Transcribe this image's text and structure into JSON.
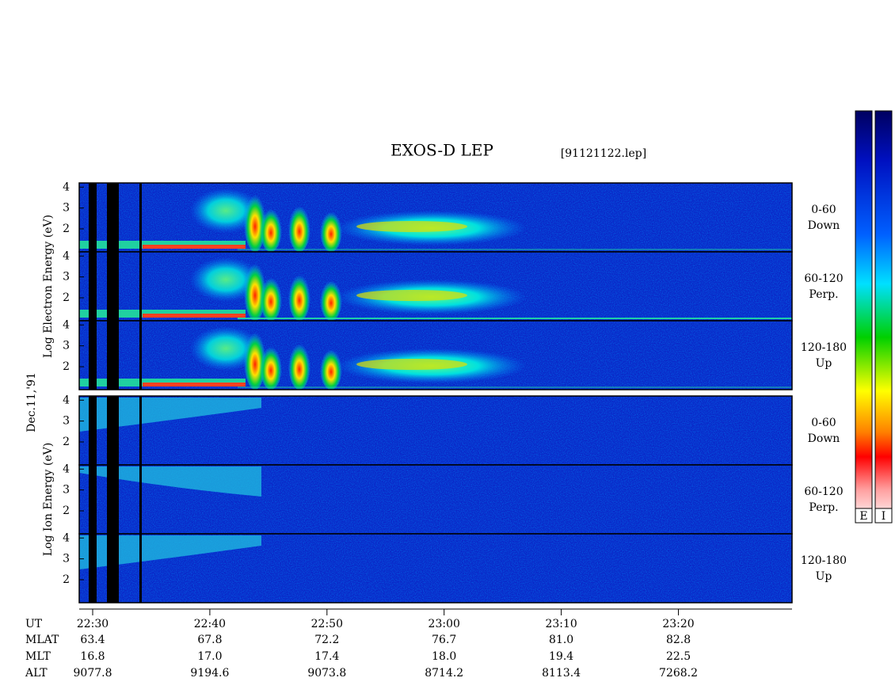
{
  "chart_data": {
    "type": "spectrogram",
    "title": "EXOS-D LEP",
    "subtitle": "[91121122.lep]",
    "date_label": "Dec.11,'91",
    "xlim": [
      1348.85,
      1409.7
    ],
    "xticks": [
      {
        "value": 1350,
        "label": "22:30"
      },
      {
        "value": 1360,
        "label": "22:40"
      },
      {
        "value": 1370,
        "label": "22:50"
      },
      {
        "value": 1380,
        "label": "23:00"
      },
      {
        "value": 1390,
        "label": "23:10"
      },
      {
        "value": 1400,
        "label": "23:20"
      }
    ],
    "ylim": [
      0.9,
      4.2
    ],
    "yticks": [
      2,
      3,
      4
    ],
    "groups": [
      {
        "ylabel": "Log Electron Energy (eV)",
        "species": "electron",
        "panels": [
          {
            "angle": "0-60",
            "direction": "Down"
          },
          {
            "angle": "60-120",
            "direction": "Perp."
          },
          {
            "angle": "120-180",
            "direction": "Up"
          }
        ]
      },
      {
        "ylabel": "Log Ion Energy (eV)",
        "species": "ion",
        "panels": [
          {
            "angle": "0-60",
            "direction": "Down"
          },
          {
            "angle": "60-120",
            "direction": "Perp."
          },
          {
            "angle": "120-180",
            "direction": "Up"
          }
        ]
      }
    ],
    "orbit": [
      {
        "label": "MLAT",
        "values": [
          "63.4",
          "67.8",
          "72.2",
          "76.7",
          "81.0",
          "82.8"
        ]
      },
      {
        "label": "MLT",
        "values": [
          "16.8",
          "17.0",
          "17.4",
          "18.0",
          "19.4",
          "22.5"
        ]
      },
      {
        "label": "ALT",
        "values": [
          "9077.8",
          "9194.6",
          "9073.8",
          "8714.2",
          "8113.4",
          "7268.2"
        ]
      }
    ],
    "x_row_label": "UT",
    "colorbars": [
      "E",
      "I"
    ]
  }
}
